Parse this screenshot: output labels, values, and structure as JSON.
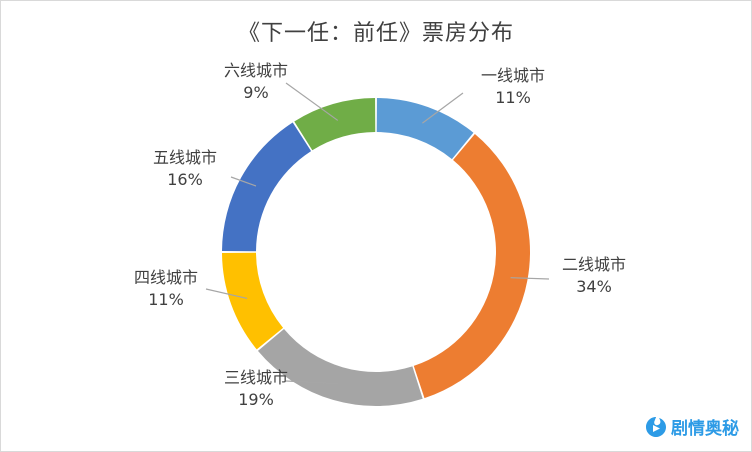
{
  "chart_data": {
    "type": "pie",
    "title": "《下一任：前任》票房分布",
    "categories": [
      "一线城市",
      "二线城市",
      "三线城市",
      "四线城市",
      "五线城市",
      "六线城市"
    ],
    "values": [
      11,
      34,
      19,
      11,
      16,
      9
    ],
    "value_labels": [
      "11%",
      "34%",
      "19%",
      "11%",
      "16%",
      "9%"
    ],
    "colors": [
      "#5b9bd5",
      "#ed7d31",
      "#a5a5a5",
      "#ffc000",
      "#4472c4",
      "#70ad47"
    ],
    "style": "doughnut",
    "legend": "none"
  },
  "watermark": {
    "text": "剧情奥秘",
    "color": "#2d9be6",
    "icon": "play-logo-icon"
  }
}
